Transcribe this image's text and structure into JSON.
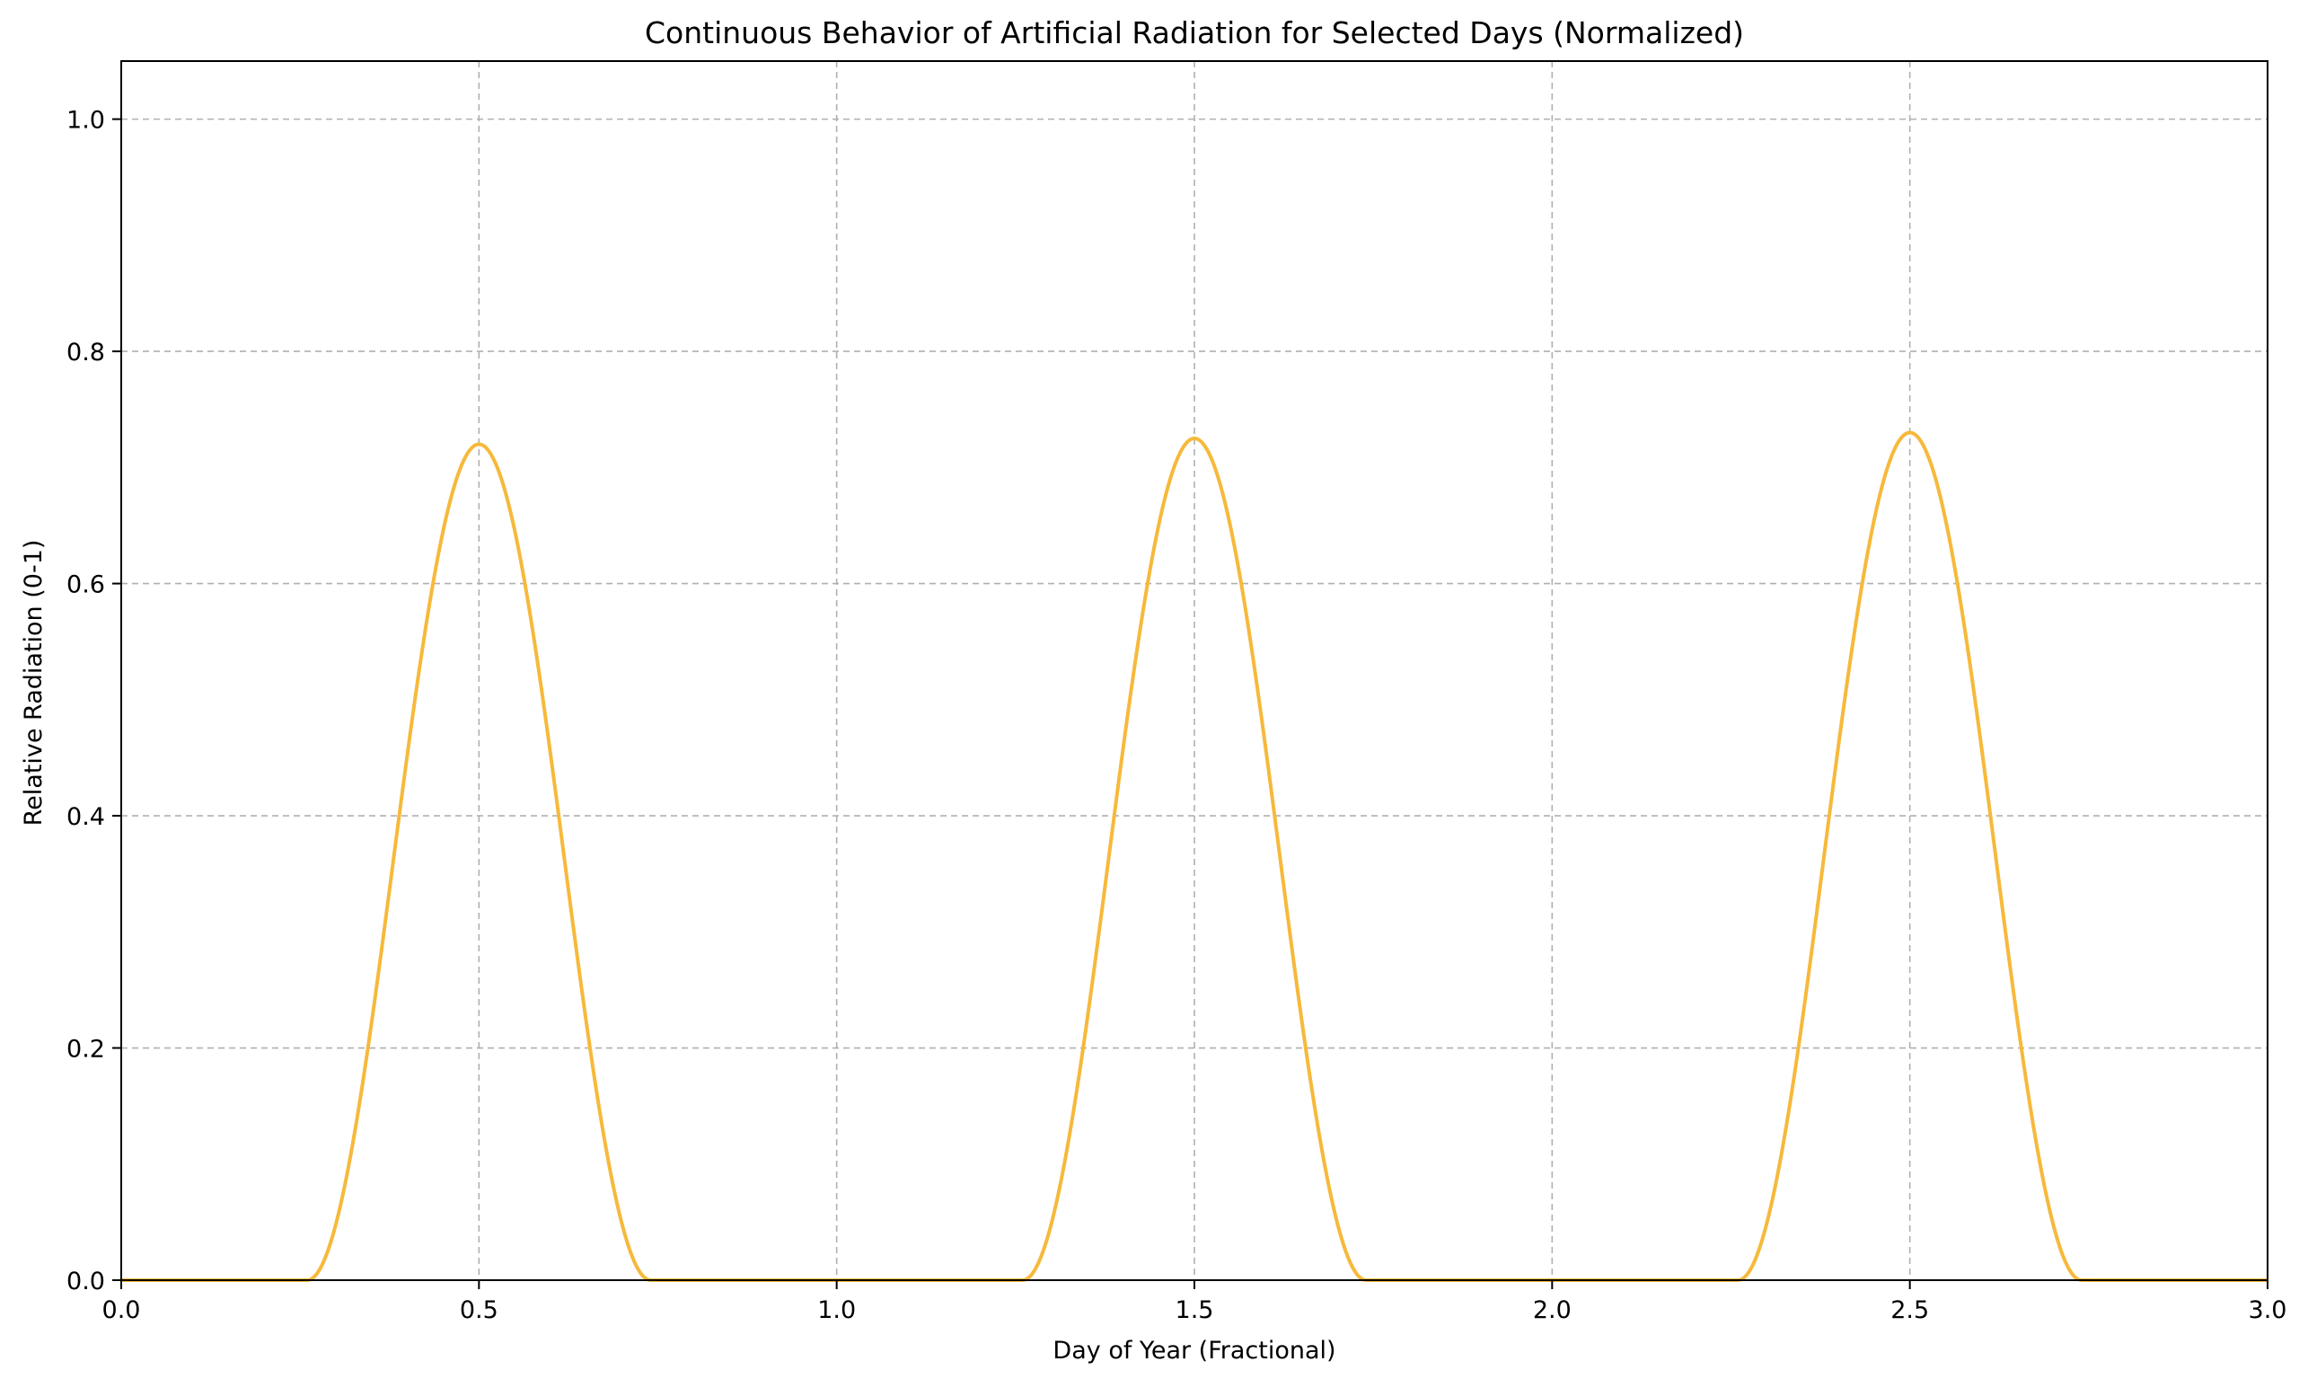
{
  "chart_data": {
    "type": "line",
    "title": "Continuous Behavior of Artificial Radiation for Selected Days (Normalized)",
    "xlabel": "Day of Year (Fractional)",
    "ylabel": "Relative Radiation (0-1)",
    "xlim": [
      0.0,
      3.0
    ],
    "ylim": [
      0.0,
      1.05
    ],
    "xticks": [
      "0.0",
      "0.5",
      "1.0",
      "1.5",
      "2.0",
      "2.5",
      "3.0"
    ],
    "yticks": [
      "0.0",
      "0.2",
      "0.4",
      "0.6",
      "0.8",
      "1.0"
    ],
    "grid": true,
    "grid_style": "dashed",
    "legend": "none",
    "line_color": "#f6b93b",
    "series": [
      {
        "peaks": [
          {
            "day_center": 0.5,
            "start": 0.26,
            "end": 0.74,
            "peak_value": 0.72
          },
          {
            "day_center": 1.5,
            "start": 1.26,
            "end": 1.74,
            "peak_value": 0.725
          },
          {
            "day_center": 2.5,
            "start": 2.26,
            "end": 2.74,
            "peak_value": 0.73
          }
        ],
        "x": [
          0.0,
          0.26,
          0.3,
          0.35,
          0.4,
          0.45,
          0.5,
          0.55,
          0.6,
          0.65,
          0.7,
          0.74,
          1.0,
          1.26,
          1.3,
          1.35,
          1.4,
          1.45,
          1.5,
          1.55,
          1.6,
          1.65,
          1.7,
          1.74,
          2.0,
          2.26,
          2.3,
          2.35,
          2.4,
          2.45,
          2.5,
          2.55,
          2.6,
          2.65,
          2.7,
          2.74,
          3.0
        ],
        "y": [
          0.0,
          0.0,
          0.05,
          0.25,
          0.5,
          0.68,
          0.72,
          0.68,
          0.5,
          0.25,
          0.05,
          0.0,
          0.0,
          0.0,
          0.05,
          0.25,
          0.5,
          0.685,
          0.725,
          0.685,
          0.5,
          0.25,
          0.05,
          0.0,
          0.0,
          0.0,
          0.05,
          0.25,
          0.5,
          0.69,
          0.73,
          0.69,
          0.5,
          0.25,
          0.05,
          0.0,
          0.0
        ]
      }
    ]
  }
}
